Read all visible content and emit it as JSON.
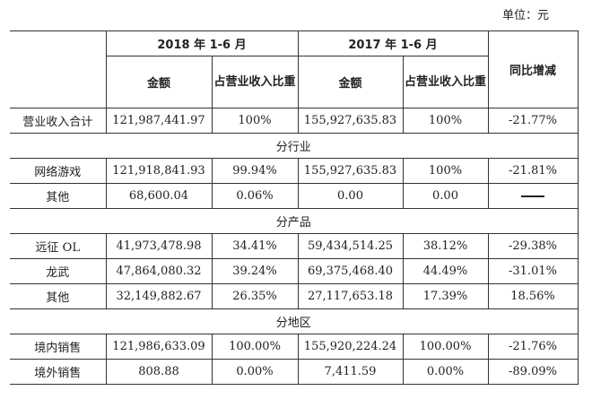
{
  "unit_label": "单位：元",
  "headers": {
    "period_2018": "2018 年 1-6 月",
    "period_2017": "2017 年 1-6 月",
    "amount": "金额",
    "share": "占营业收入比重",
    "yoy": "同比增减"
  },
  "rows": {
    "total": {
      "label": "营业收入合计",
      "a2018": "121,987,441.97",
      "s2018": "100%",
      "a2017": "155,927,635.83",
      "s2017": "100%",
      "yoy": "-21.77%"
    },
    "sec_industry": "分行业",
    "online_games": {
      "label": "网络游戏",
      "a2018": "121,918,841.93",
      "s2018": "99.94%",
      "a2017": "155,927,635.83",
      "s2017": "100%",
      "yoy": "-21.81%"
    },
    "other_industry": {
      "label": "其他",
      "a2018": "68,600.04",
      "s2018": "0.06%",
      "a2017": "0.00",
      "s2017": "0.00",
      "yoy_dash": "——"
    },
    "sec_product": "分产品",
    "yuanzheng": {
      "label": "远征 OL",
      "a2018": "41,973,478.98",
      "s2018": "34.41%",
      "a2017": "59,434,514.25",
      "s2017": "38.12%",
      "yoy": "-29.38%"
    },
    "longwu": {
      "label": "龙武",
      "a2018": "47,864,080.32",
      "s2018": "39.24%",
      "a2017": "69,375,468.40",
      "s2017": "44.49%",
      "yoy": "-31.01%"
    },
    "other_product": {
      "label": "其他",
      "a2018": "32,149,882.67",
      "s2018": "26.35%",
      "a2017": "27,117,653.18",
      "s2017": "17.39%",
      "yoy": "18.56%"
    },
    "sec_region": "分地区",
    "domestic": {
      "label": "境内销售",
      "a2018": "121,986,633.09",
      "s2018": "100.00%",
      "a2017": "155,920,224.24",
      "s2017": "100.00%",
      "yoy": "-21.76%"
    },
    "overseas": {
      "label": "境外销售",
      "a2018": "808.88",
      "s2018": "0.00%",
      "a2017": "7,411.59",
      "s2017": "0.00%",
      "yoy": "-89.09%"
    }
  }
}
